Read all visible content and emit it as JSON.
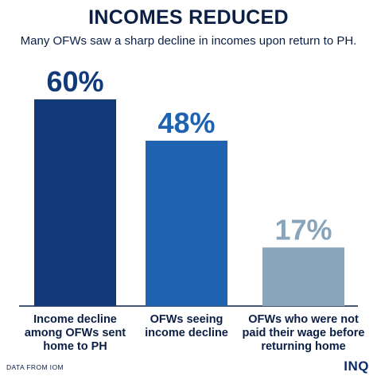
{
  "title": "INCOMES REDUCED",
  "subtitle": "Many OFWs saw a sharp decline in incomes upon return to PH.",
  "source_note": "DATA FROM IOM",
  "brand": "INQ",
  "colors": {
    "text": "#0b1f44",
    "baseline": "#0b1f44",
    "bars": [
      "#123a78",
      "#1f63b0",
      "#88a5bb"
    ]
  },
  "chart_data": {
    "type": "bar",
    "categories": [
      "Income decline among OFWs sent home to PH",
      "OFWs seeing income decline",
      "OFWs who were not paid their wage before returning home"
    ],
    "category_lines": [
      [
        "Income decline",
        "among OFWs sent",
        "home to PH"
      ],
      [
        "OFWs seeing",
        "income decline"
      ],
      [
        "OFWs who were not",
        "paid their wage before",
        "returning home"
      ]
    ],
    "values": [
      60,
      48,
      17
    ],
    "value_labels": [
      "60%",
      "48%",
      "17%"
    ],
    "ylim": [
      0,
      60
    ],
    "grid": false,
    "legend": "none"
  }
}
